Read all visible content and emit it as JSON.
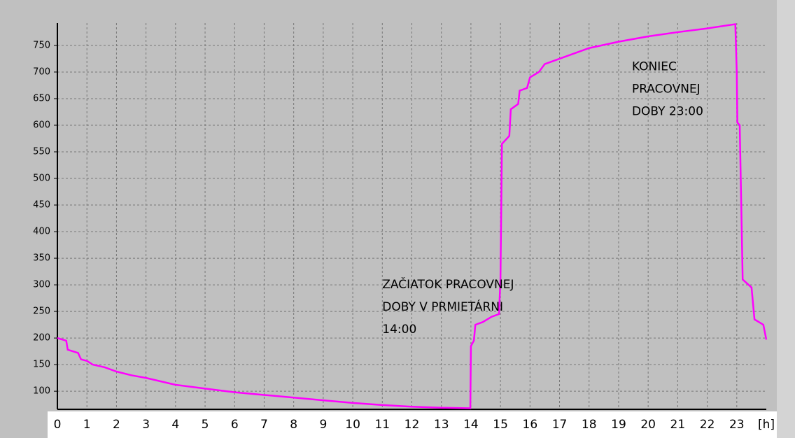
{
  "chart_data": {
    "type": "line",
    "x": [
      0,
      0.3,
      0.35,
      0.7,
      0.8,
      1.0,
      1.2,
      1.6,
      2,
      2.5,
      3,
      4,
      5,
      6,
      7,
      8,
      9,
      10,
      11,
      12,
      13,
      13.98,
      14.0,
      14.1,
      14.15,
      14.4,
      14.7,
      14.95,
      15.0,
      15.05,
      15.3,
      15.35,
      15.6,
      15.65,
      15.9,
      16.0,
      16.3,
      16.5,
      17,
      17.5,
      18,
      19,
      20,
      21,
      22,
      22.95,
      23.0,
      23.02,
      23.1,
      23.2,
      23.5,
      23.6,
      23.9,
      24.0
    ],
    "series": [
      {
        "name": "load",
        "color": "#ff00ff",
        "values": [
          200,
          195,
          178,
          172,
          160,
          157,
          150,
          145,
          137,
          130,
          125,
          112,
          105,
          98,
          93,
          88,
          83,
          78,
          74,
          71,
          69,
          68,
          185,
          195,
          225,
          230,
          240,
          245,
          310,
          565,
          580,
          630,
          640,
          665,
          670,
          690,
          700,
          715,
          725,
          735,
          745,
          757,
          767,
          775,
          782,
          790,
          700,
          605,
          600,
          310,
          295,
          235,
          225,
          197
        ]
      }
    ],
    "xlim": [
      0,
      24
    ],
    "xticks": [
      0,
      1,
      2,
      3,
      4,
      5,
      6,
      7,
      8,
      9,
      10,
      11,
      12,
      13,
      14,
      15,
      16,
      17,
      18,
      19,
      20,
      21,
      22,
      23,
      {
        "value": 24,
        "label": "[h]"
      }
    ],
    "ylim": [
      66,
      792
    ],
    "yticks": [
      100,
      150,
      200,
      250,
      300,
      350,
      400,
      450,
      500,
      550,
      600,
      650,
      700,
      750
    ],
    "grid": true,
    "annotations": [
      {
        "x": 11.0,
        "y": 300,
        "lines": [
          "ZAČIATOK PRACOVNEJ",
          "DOBY V PRMIETÁRNI",
          "14:00"
        ]
      },
      {
        "x": 19.45,
        "y": 710,
        "lines": [
          "KONIEC",
          "PRACOVNEJ",
          "DOBY 23:00"
        ]
      }
    ]
  }
}
